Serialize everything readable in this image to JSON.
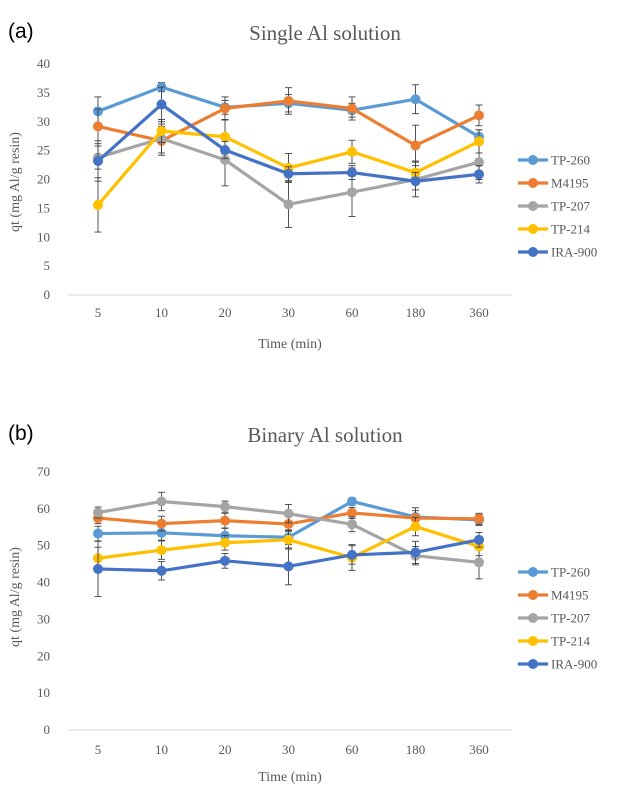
{
  "chart_data": [
    {
      "panel_label": "(a)",
      "type": "line",
      "title": "Single Al solution",
      "xlabel": "Time (min)",
      "ylabel": "qt (mg Al/g resin)",
      "categories": [
        "5",
        "10",
        "20",
        "30",
        "60",
        "180",
        "360"
      ],
      "ylim": [
        0,
        40
      ],
      "yticks": [
        0,
        5,
        10,
        15,
        20,
        25,
        30,
        35,
        40
      ],
      "grid": false,
      "legend": "right",
      "series": [
        {
          "name": "TP-260",
          "color": "#5B9BD5",
          "values": [
            31.8,
            36.0,
            32.5,
            33.2,
            32.0,
            33.9,
            27.4
          ],
          "errors": [
            2.5,
            0.8,
            1.2,
            1.5,
            1.2,
            2.5,
            1.2
          ]
        },
        {
          "name": "M4195",
          "color": "#ED7D31",
          "values": [
            29.2,
            26.7,
            32.3,
            33.6,
            32.3,
            25.9,
            31.1
          ],
          "errors": [
            3.0,
            2.5,
            2.0,
            2.3,
            2.0,
            3.5,
            1.8
          ]
        },
        {
          "name": "TP-207",
          "color": "#A5A5A5",
          "values": [
            23.8,
            27.1,
            23.4,
            15.7,
            17.8,
            20.0,
            23.0
          ],
          "errors": [
            2.0,
            2.5,
            4.5,
            4.0,
            4.2,
            3.0,
            3.0
          ]
        },
        {
          "name": "TP-214",
          "color": "#FFC000",
          "values": [
            15.6,
            28.4,
            27.4,
            22.0,
            24.8,
            21.2,
            26.6
          ],
          "errors": [
            4.7,
            2.0,
            3.0,
            2.5,
            2.0,
            2.0,
            2.0
          ]
        },
        {
          "name": "IRA-900",
          "color": "#4472C4",
          "values": [
            23.2,
            33.0,
            25.1,
            21.0,
            21.2,
            19.7,
            20.9
          ],
          "errors": [
            3.5,
            3.0,
            1.5,
            1.2,
            1.2,
            1.5,
            1.5
          ]
        }
      ]
    },
    {
      "panel_label": "(b)",
      "type": "line",
      "title": "Binary Al solution",
      "xlabel": "Time (min)",
      "ylabel": "qt (mg Al/g resin)",
      "categories": [
        "5",
        "10",
        "20",
        "30",
        "60",
        "180",
        "360"
      ],
      "ylim": [
        0,
        70
      ],
      "yticks": [
        0,
        10,
        20,
        30,
        40,
        50,
        60,
        70
      ],
      "grid": false,
      "legend": "right",
      "series": [
        {
          "name": "TP-260",
          "color": "#5B9BD5",
          "values": [
            53.3,
            53.5,
            52.7,
            52.3,
            62.0,
            57.8,
            57.0
          ],
          "errors": [
            2.0,
            2.0,
            2.0,
            2.0,
            1.0,
            2.5,
            1.5
          ]
        },
        {
          "name": "M4195",
          "color": "#ED7D31",
          "values": [
            57.5,
            56.0,
            56.8,
            55.9,
            58.9,
            57.5,
            57.3
          ],
          "errors": [
            1.5,
            2.0,
            2.0,
            2.0,
            1.5,
            2.0,
            1.5
          ]
        },
        {
          "name": "TP-207",
          "color": "#A5A5A5",
          "values": [
            59.0,
            62.0,
            60.6,
            58.7,
            55.8,
            47.3,
            45.5
          ],
          "errors": [
            1.5,
            2.5,
            1.5,
            2.5,
            2.0,
            2.5,
            4.5
          ]
        },
        {
          "name": "TP-214",
          "color": "#FFC000",
          "values": [
            46.6,
            48.8,
            50.8,
            51.6,
            46.8,
            55.2,
            49.8
          ],
          "errors": [
            3.0,
            2.5,
            2.0,
            2.5,
            3.5,
            2.5,
            2.5
          ]
        },
        {
          "name": "IRA-900",
          "color": "#4472C4",
          "values": [
            43.7,
            43.2,
            45.9,
            44.4,
            47.5,
            48.2,
            51.6
          ],
          "errors": [
            7.5,
            2.5,
            2.0,
            5.0,
            2.5,
            3.0,
            2.0
          ]
        }
      ]
    }
  ]
}
